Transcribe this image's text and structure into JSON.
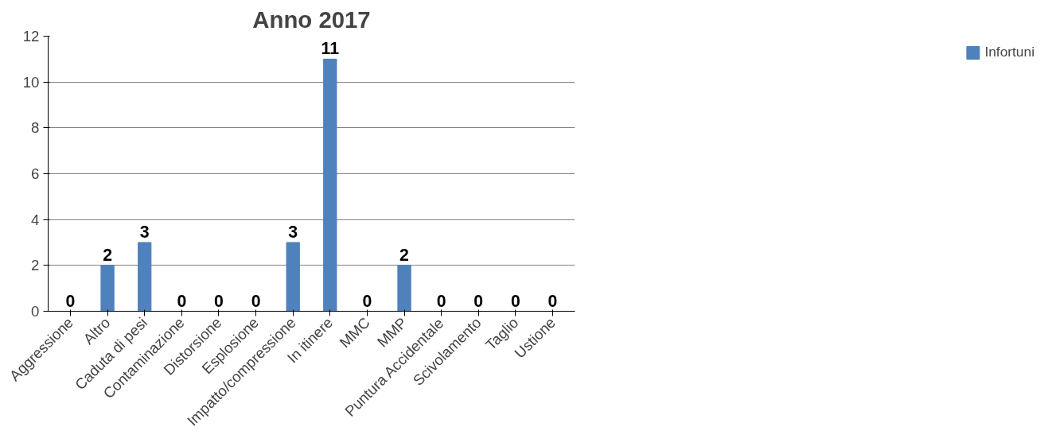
{
  "chart_data": {
    "type": "bar",
    "title": "Anno 2017",
    "categories": [
      "Aggressione",
      "Altro",
      "Caduta di pesi",
      "Contaminazione",
      "Distorsione",
      "Esplosione",
      "Impatto/compressione",
      "In itinere",
      "MMC",
      "MMP",
      "Puntura Accidentale",
      "Scivolamento",
      "Taglio",
      "Ustione"
    ],
    "series": [
      {
        "name": "Infortuni",
        "color": "#4f81bd",
        "values": [
          0,
          2,
          3,
          0,
          0,
          0,
          3,
          11,
          0,
          2,
          0,
          0,
          0,
          0
        ]
      }
    ],
    "ylim": [
      0,
      12
    ],
    "yticks": [
      0,
      2,
      4,
      6,
      8,
      10,
      12
    ],
    "grid": "y",
    "legend": "right",
    "data_labels": true
  }
}
